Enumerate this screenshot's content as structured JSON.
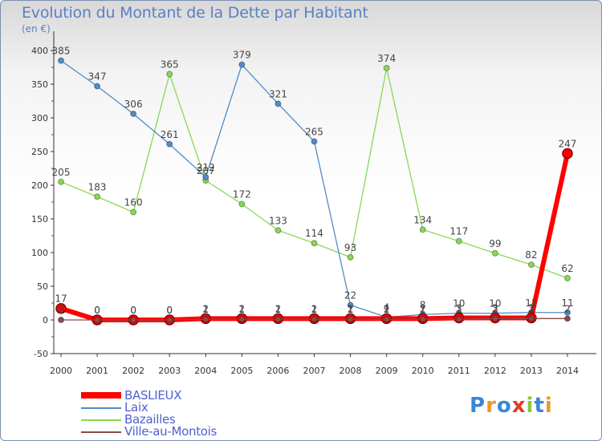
{
  "title": "Evolution du Montant de la Dette par Habitant",
  "subtitle": "(en €)",
  "logo": {
    "text": "Proxiti"
  },
  "chart_data": {
    "type": "line",
    "title": "Evolution du Montant de la Dette par Habitant",
    "subtitle": "(en €)",
    "x": [
      "2000",
      "2001",
      "2002",
      "2003",
      "2004",
      "2005",
      "2006",
      "2007",
      "2008",
      "2009",
      "2010",
      "2011",
      "2012",
      "2013",
      "2014"
    ],
    "yticks": [
      -50,
      0,
      50,
      100,
      150,
      200,
      250,
      300,
      350,
      400
    ],
    "ylim": [
      -50,
      400
    ],
    "grid": false,
    "legend_position": "bottom-left",
    "series": [
      {
        "name": "BASLIEUX",
        "color": "#ff0000",
        "emphasis": true,
        "values": [
          17,
          0,
          0,
          0,
          2,
          2,
          2,
          2,
          2,
          2,
          2,
          3,
          3,
          3,
          247
        ]
      },
      {
        "name": "Laix",
        "color": "#4f8cc8",
        "values": [
          385,
          347,
          306,
          261,
          212,
          379,
          321,
          265,
          22,
          4,
          8,
          10,
          10,
          11,
          11
        ]
      },
      {
        "name": "Bazailles",
        "color": "#88d854",
        "values": [
          205,
          183,
          160,
          365,
          207,
          172,
          133,
          114,
          93,
          374,
          134,
          117,
          99,
          82,
          62
        ]
      },
      {
        "name": "Ville-au-Montois",
        "color": "#8b4a4a",
        "values": [
          0,
          0,
          0,
          0,
          1,
          1,
          1,
          1,
          1,
          1,
          1,
          1,
          2,
          2,
          2
        ]
      }
    ]
  }
}
